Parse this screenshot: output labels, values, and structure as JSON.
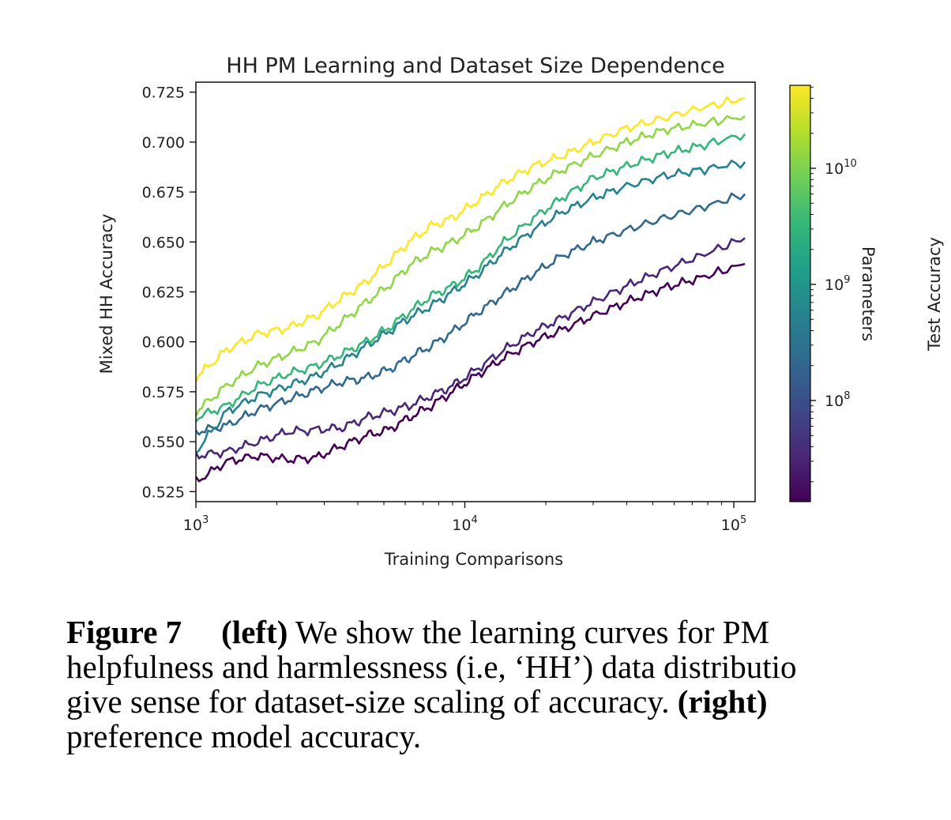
{
  "chart_data": {
    "type": "line",
    "title": "HH PM Learning and Dataset Size Dependence",
    "xlabel": "Training Comparisons",
    "ylabel": "Mixed HH Accuracy",
    "xscale": "log",
    "xlim": [
      1000,
      120000
    ],
    "ylim": [
      0.52,
      0.73
    ],
    "yticks": [
      "0.525",
      "0.550",
      "0.575",
      "0.600",
      "0.625",
      "0.650",
      "0.675",
      "0.700",
      "0.725"
    ],
    "xticks": [
      {
        "base": "10",
        "exp": "3"
      },
      {
        "base": "10",
        "exp": "4"
      },
      {
        "base": "10",
        "exp": "5"
      }
    ],
    "grid": false,
    "colorbar": {
      "label": "Parameters",
      "scale": "log",
      "ticks": [
        {
          "base": "10",
          "exp": "8"
        },
        {
          "base": "10",
          "exp": "9"
        },
        {
          "base": "10",
          "exp": "10"
        }
      ],
      "colormap": [
        "#440154",
        "#482878",
        "#3e4989",
        "#31688e",
        "#26828e",
        "#1f9e89",
        "#35b779",
        "#6ece58",
        "#b5de2b",
        "#fde725"
      ]
    },
    "series": [
      {
        "color": "#440154",
        "x": [
          1000,
          1300,
          1700,
          2200,
          2800,
          3500,
          4300,
          5200,
          6200,
          7500,
          9000,
          11000,
          14000,
          18000,
          23000,
          30000,
          40000,
          55000,
          75000,
          110000
        ],
        "y": [
          0.53,
          0.54,
          0.543,
          0.541,
          0.542,
          0.548,
          0.553,
          0.556,
          0.562,
          0.568,
          0.575,
          0.583,
          0.592,
          0.6,
          0.606,
          0.613,
          0.62,
          0.627,
          0.632,
          0.639
        ]
      },
      {
        "color": "#482878",
        "x": [
          1000,
          1300,
          1700,
          2200,
          2800,
          3500,
          4300,
          5200,
          6200,
          7500,
          9000,
          11000,
          14000,
          18000,
          23000,
          30000,
          40000,
          55000,
          75000,
          110000
        ],
        "y": [
          0.543,
          0.545,
          0.55,
          0.555,
          0.556,
          0.557,
          0.562,
          0.565,
          0.568,
          0.573,
          0.578,
          0.586,
          0.596,
          0.605,
          0.612,
          0.62,
          0.628,
          0.636,
          0.643,
          0.652
        ]
      },
      {
        "color": "#31688e",
        "x": [
          1000,
          1300,
          1700,
          2200,
          2800,
          3500,
          4300,
          5200,
          6200,
          7500,
          9000,
          11000,
          14000,
          18000,
          23000,
          30000,
          40000,
          55000,
          75000,
          110000
        ],
        "y": [
          0.555,
          0.558,
          0.566,
          0.571,
          0.576,
          0.58,
          0.582,
          0.586,
          0.592,
          0.598,
          0.605,
          0.614,
          0.624,
          0.634,
          0.643,
          0.65,
          0.656,
          0.662,
          0.667,
          0.674
        ]
      },
      {
        "color": "#26828e",
        "x": [
          1000,
          1300,
          1700,
          2200,
          2800,
          3500,
          4300,
          5200,
          6200,
          7500,
          9000,
          11000,
          14000,
          18000,
          23000,
          30000,
          40000,
          55000,
          75000,
          110000
        ],
        "y": [
          0.545,
          0.565,
          0.573,
          0.578,
          0.583,
          0.59,
          0.598,
          0.605,
          0.612,
          0.618,
          0.625,
          0.633,
          0.645,
          0.656,
          0.665,
          0.672,
          0.678,
          0.683,
          0.686,
          0.69
        ]
      },
      {
        "color": "#35b779",
        "x": [
          1000,
          1300,
          1700,
          2200,
          2800,
          3500,
          4300,
          5200,
          6200,
          7500,
          9000,
          11000,
          14000,
          18000,
          23000,
          30000,
          40000,
          55000,
          75000,
          110000
        ],
        "y": [
          0.562,
          0.568,
          0.578,
          0.584,
          0.588,
          0.594,
          0.6,
          0.607,
          0.615,
          0.623,
          0.628,
          0.636,
          0.65,
          0.662,
          0.672,
          0.682,
          0.688,
          0.694,
          0.698,
          0.704
        ]
      },
      {
        "color": "#8fd744",
        "x": [
          1000,
          1300,
          1700,
          2200,
          2800,
          3500,
          4300,
          5200,
          6200,
          7500,
          9000,
          11000,
          14000,
          18000,
          23000,
          30000,
          40000,
          55000,
          75000,
          110000
        ],
        "y": [
          0.565,
          0.578,
          0.588,
          0.594,
          0.6,
          0.61,
          0.62,
          0.628,
          0.638,
          0.645,
          0.65,
          0.657,
          0.668,
          0.678,
          0.686,
          0.693,
          0.7,
          0.706,
          0.709,
          0.713
        ]
      },
      {
        "color": "#fde725",
        "x": [
          1000,
          1300,
          1700,
          2200,
          2800,
          3500,
          4300,
          5200,
          6200,
          7500,
          9000,
          11000,
          14000,
          18000,
          23000,
          30000,
          40000,
          55000,
          75000,
          110000
        ],
        "y": [
          0.582,
          0.596,
          0.604,
          0.607,
          0.613,
          0.622,
          0.63,
          0.64,
          0.65,
          0.658,
          0.662,
          0.67,
          0.68,
          0.688,
          0.693,
          0.7,
          0.707,
          0.712,
          0.717,
          0.722
        ]
      }
    ]
  },
  "caption": {
    "label": "Figure 7",
    "left_tag": "(left)",
    "line1_text": " We show the learning curves for PM",
    "line2": "helpfulness and harmlessness (i.e, ‘HH’) data distributio",
    "line3_text": "give sense for dataset-size scaling of accuracy. ",
    "right_tag": "(right)",
    "line4": "preference model accuracy."
  },
  "cropped_right_label": "Test Accuracy"
}
